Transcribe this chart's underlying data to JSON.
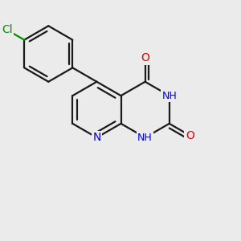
{
  "background_color": "#ebebeb",
  "bond_color": "#1a1a1a",
  "bond_width": 1.6,
  "atom_colors": {
    "O": "#e00000",
    "N": "#0000dd",
    "Cl": "#009000",
    "H_gray": "#888888"
  },
  "font_size": 10,
  "font_size_h": 9
}
